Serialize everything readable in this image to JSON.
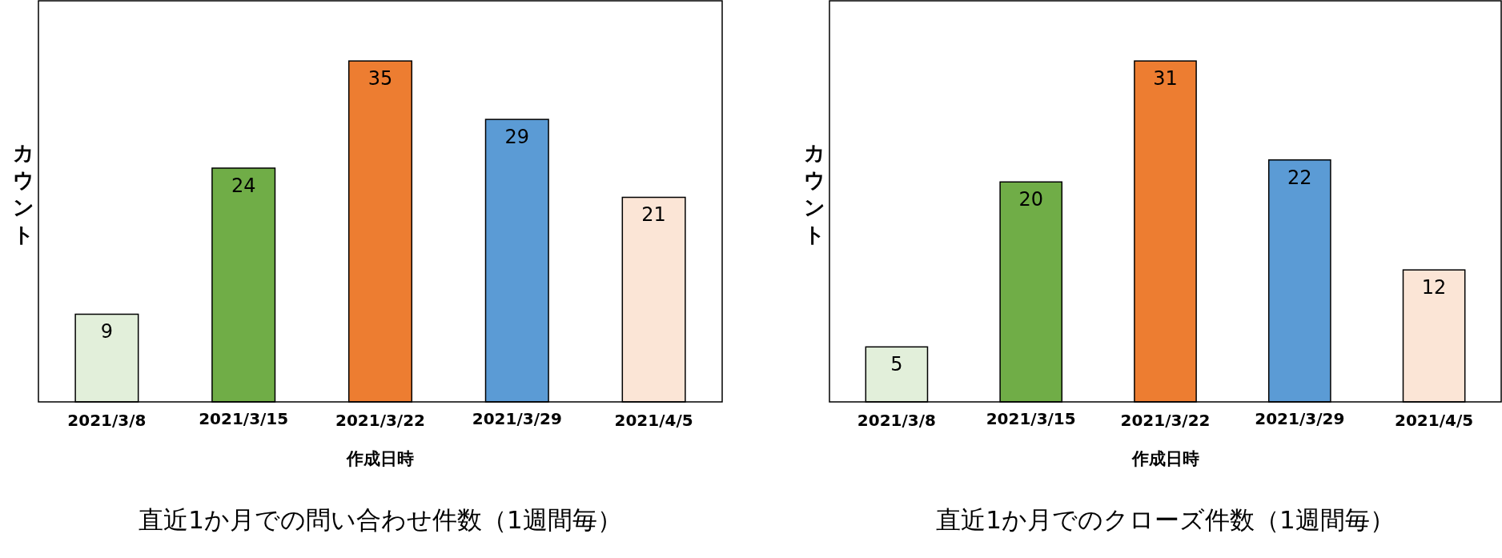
{
  "chart_data": [
    {
      "type": "bar",
      "title": "直近1か月での問い合わせ件数（1週間毎）",
      "xlabel": "作成日時",
      "ylabel": "カウント",
      "categories": [
        "2021/3/8",
        "2021/3/15",
        "2021/3/22",
        "2021/3/29",
        "2021/4/5"
      ],
      "values": [
        9,
        24,
        35,
        29,
        21
      ],
      "colors": [
        "#e2efda",
        "#70ad47",
        "#ed7d31",
        "#5b9bd5",
        "#fbe5d6"
      ],
      "data_labels": true
    },
    {
      "type": "bar",
      "title": "直近1か月でのクローズ件数（1週間毎）",
      "xlabel": "作成日時",
      "ylabel": "カウント",
      "categories": [
        "2021/3/8",
        "2021/3/15",
        "2021/3/22",
        "2021/3/29",
        "2021/4/5"
      ],
      "values": [
        5,
        20,
        31,
        22,
        12
      ],
      "colors": [
        "#e2efda",
        "#70ad47",
        "#ed7d31",
        "#5b9bd5",
        "#fbe5d6"
      ],
      "data_labels": true
    }
  ]
}
